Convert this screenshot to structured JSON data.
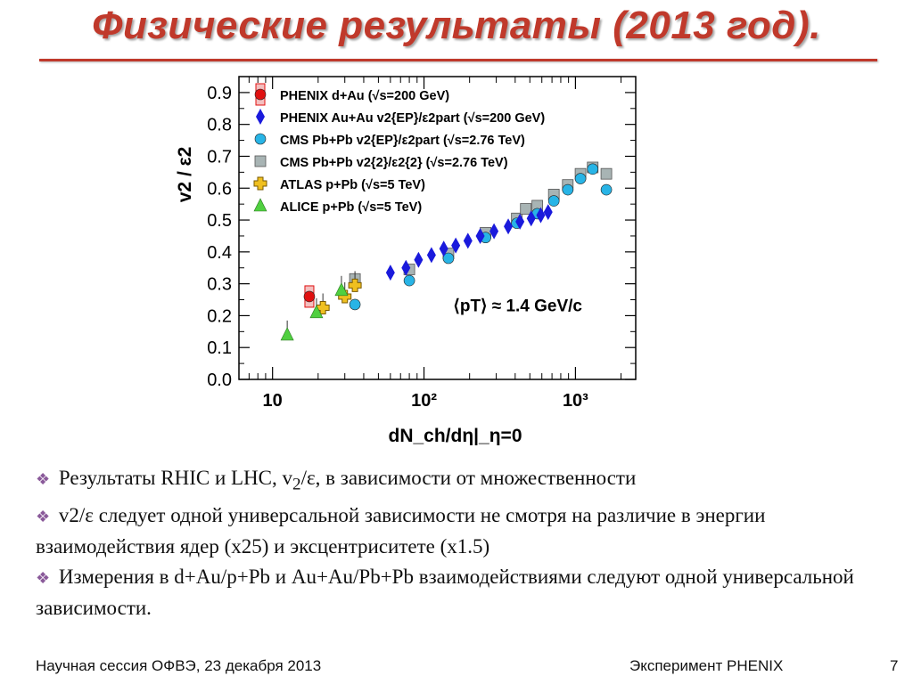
{
  "slide": {
    "title": "Физические результаты (2013 год).",
    "bullets": [
      {
        "pre": "Результаты RHIC и LHC, v",
        "sub": "2",
        "post": "/ε, в зависимости от множественности"
      },
      {
        "pre": "v2/ε следует одной универсальной зависимости не смотря на различие в энергии взаимодействия ядер (x25) и эксцентриситете (x1.5)",
        "sub": "",
        "post": ""
      },
      {
        "pre": "Измерения в d+Au/p+Pb и Au+Au/Pb+Pb взаимодействиями следуют одной универсальной зависимости.",
        "sub": "",
        "post": ""
      }
    ],
    "footer_left": "Научная сессия ОФВЭ,  23 декабря 2013",
    "footer_center": "Эксперимент PHENIX",
    "page_number": "7",
    "colors": {
      "title": "#c0392b",
      "bullet_icon": "#8a5a9a"
    }
  },
  "chart_data": {
    "type": "scatter",
    "xscale": "log",
    "xlim": [
      6,
      2500
    ],
    "ylim": [
      0,
      0.95
    ],
    "xlabel": "dN_ch/dη|_η=0",
    "ylabel": "v2 / ε2",
    "x_ticks": [
      "10",
      "10²",
      "10³"
    ],
    "y_ticks": [
      "0.0",
      "0.1",
      "0.2",
      "0.3",
      "0.4",
      "0.5",
      "0.6",
      "0.7",
      "0.8",
      "0.9"
    ],
    "annotation": "⟨pT⟩ ≈ 1.4 GeV/c",
    "series": [
      {
        "name": "PHENIX d+Au (√s=200 GeV)",
        "marker": "circle-box",
        "color": "#e01010",
        "points": [
          [
            17.5,
            0.26
          ]
        ]
      },
      {
        "name": "PHENIX Au+Au v2{EP}/ε2part (√s=200 GeV)",
        "marker": "diamond",
        "color": "#1a1adc",
        "points": [
          [
            60,
            0.335
          ],
          [
            76,
            0.35
          ],
          [
            92,
            0.375
          ],
          [
            112,
            0.39
          ],
          [
            135,
            0.41
          ],
          [
            162,
            0.42
          ],
          [
            195,
            0.435
          ],
          [
            235,
            0.45
          ],
          [
            290,
            0.465
          ],
          [
            360,
            0.48
          ],
          [
            430,
            0.495
          ],
          [
            510,
            0.505
          ],
          [
            590,
            0.515
          ],
          [
            660,
            0.525
          ]
        ]
      },
      {
        "name": "CMS Pb+Pb v2{EP}/ε2part (√s=2.76 TeV)",
        "marker": "circle",
        "color": "#28b4e6",
        "points": [
          [
            35,
            0.235
          ],
          [
            80,
            0.31
          ],
          [
            145,
            0.38
          ],
          [
            255,
            0.445
          ],
          [
            410,
            0.49
          ],
          [
            560,
            0.52
          ],
          [
            720,
            0.56
          ],
          [
            890,
            0.595
          ],
          [
            1080,
            0.63
          ],
          [
            1300,
            0.66
          ],
          [
            1600,
            0.595
          ]
        ]
      },
      {
        "name": "CMS Pb+Pb v2{2}/ε2{2} (√s=2.76 TeV)",
        "marker": "square",
        "color": "#a8b4b4",
        "points": [
          [
            35,
            0.315
          ],
          [
            80,
            0.345
          ],
          [
            145,
            0.395
          ],
          [
            255,
            0.46
          ],
          [
            410,
            0.505
          ],
          [
            470,
            0.535
          ],
          [
            560,
            0.545
          ],
          [
            720,
            0.58
          ],
          [
            890,
            0.61
          ],
          [
            1080,
            0.645
          ],
          [
            1300,
            0.665
          ],
          [
            1600,
            0.645
          ]
        ]
      },
      {
        "name": "ATLAS p+Pb (√s=5 TeV)",
        "marker": "cross",
        "color": "#f0c020",
        "points": [
          [
            21.5,
            0.225
          ],
          [
            30,
            0.26
          ],
          [
            35,
            0.295
          ]
        ]
      },
      {
        "name": "ALICE p+Pb (√s=5 TeV)",
        "marker": "triangle",
        "color": "#50d040",
        "points": [
          [
            12.5,
            0.14
          ],
          [
            19.5,
            0.21
          ],
          [
            28.5,
            0.28
          ]
        ]
      }
    ]
  }
}
